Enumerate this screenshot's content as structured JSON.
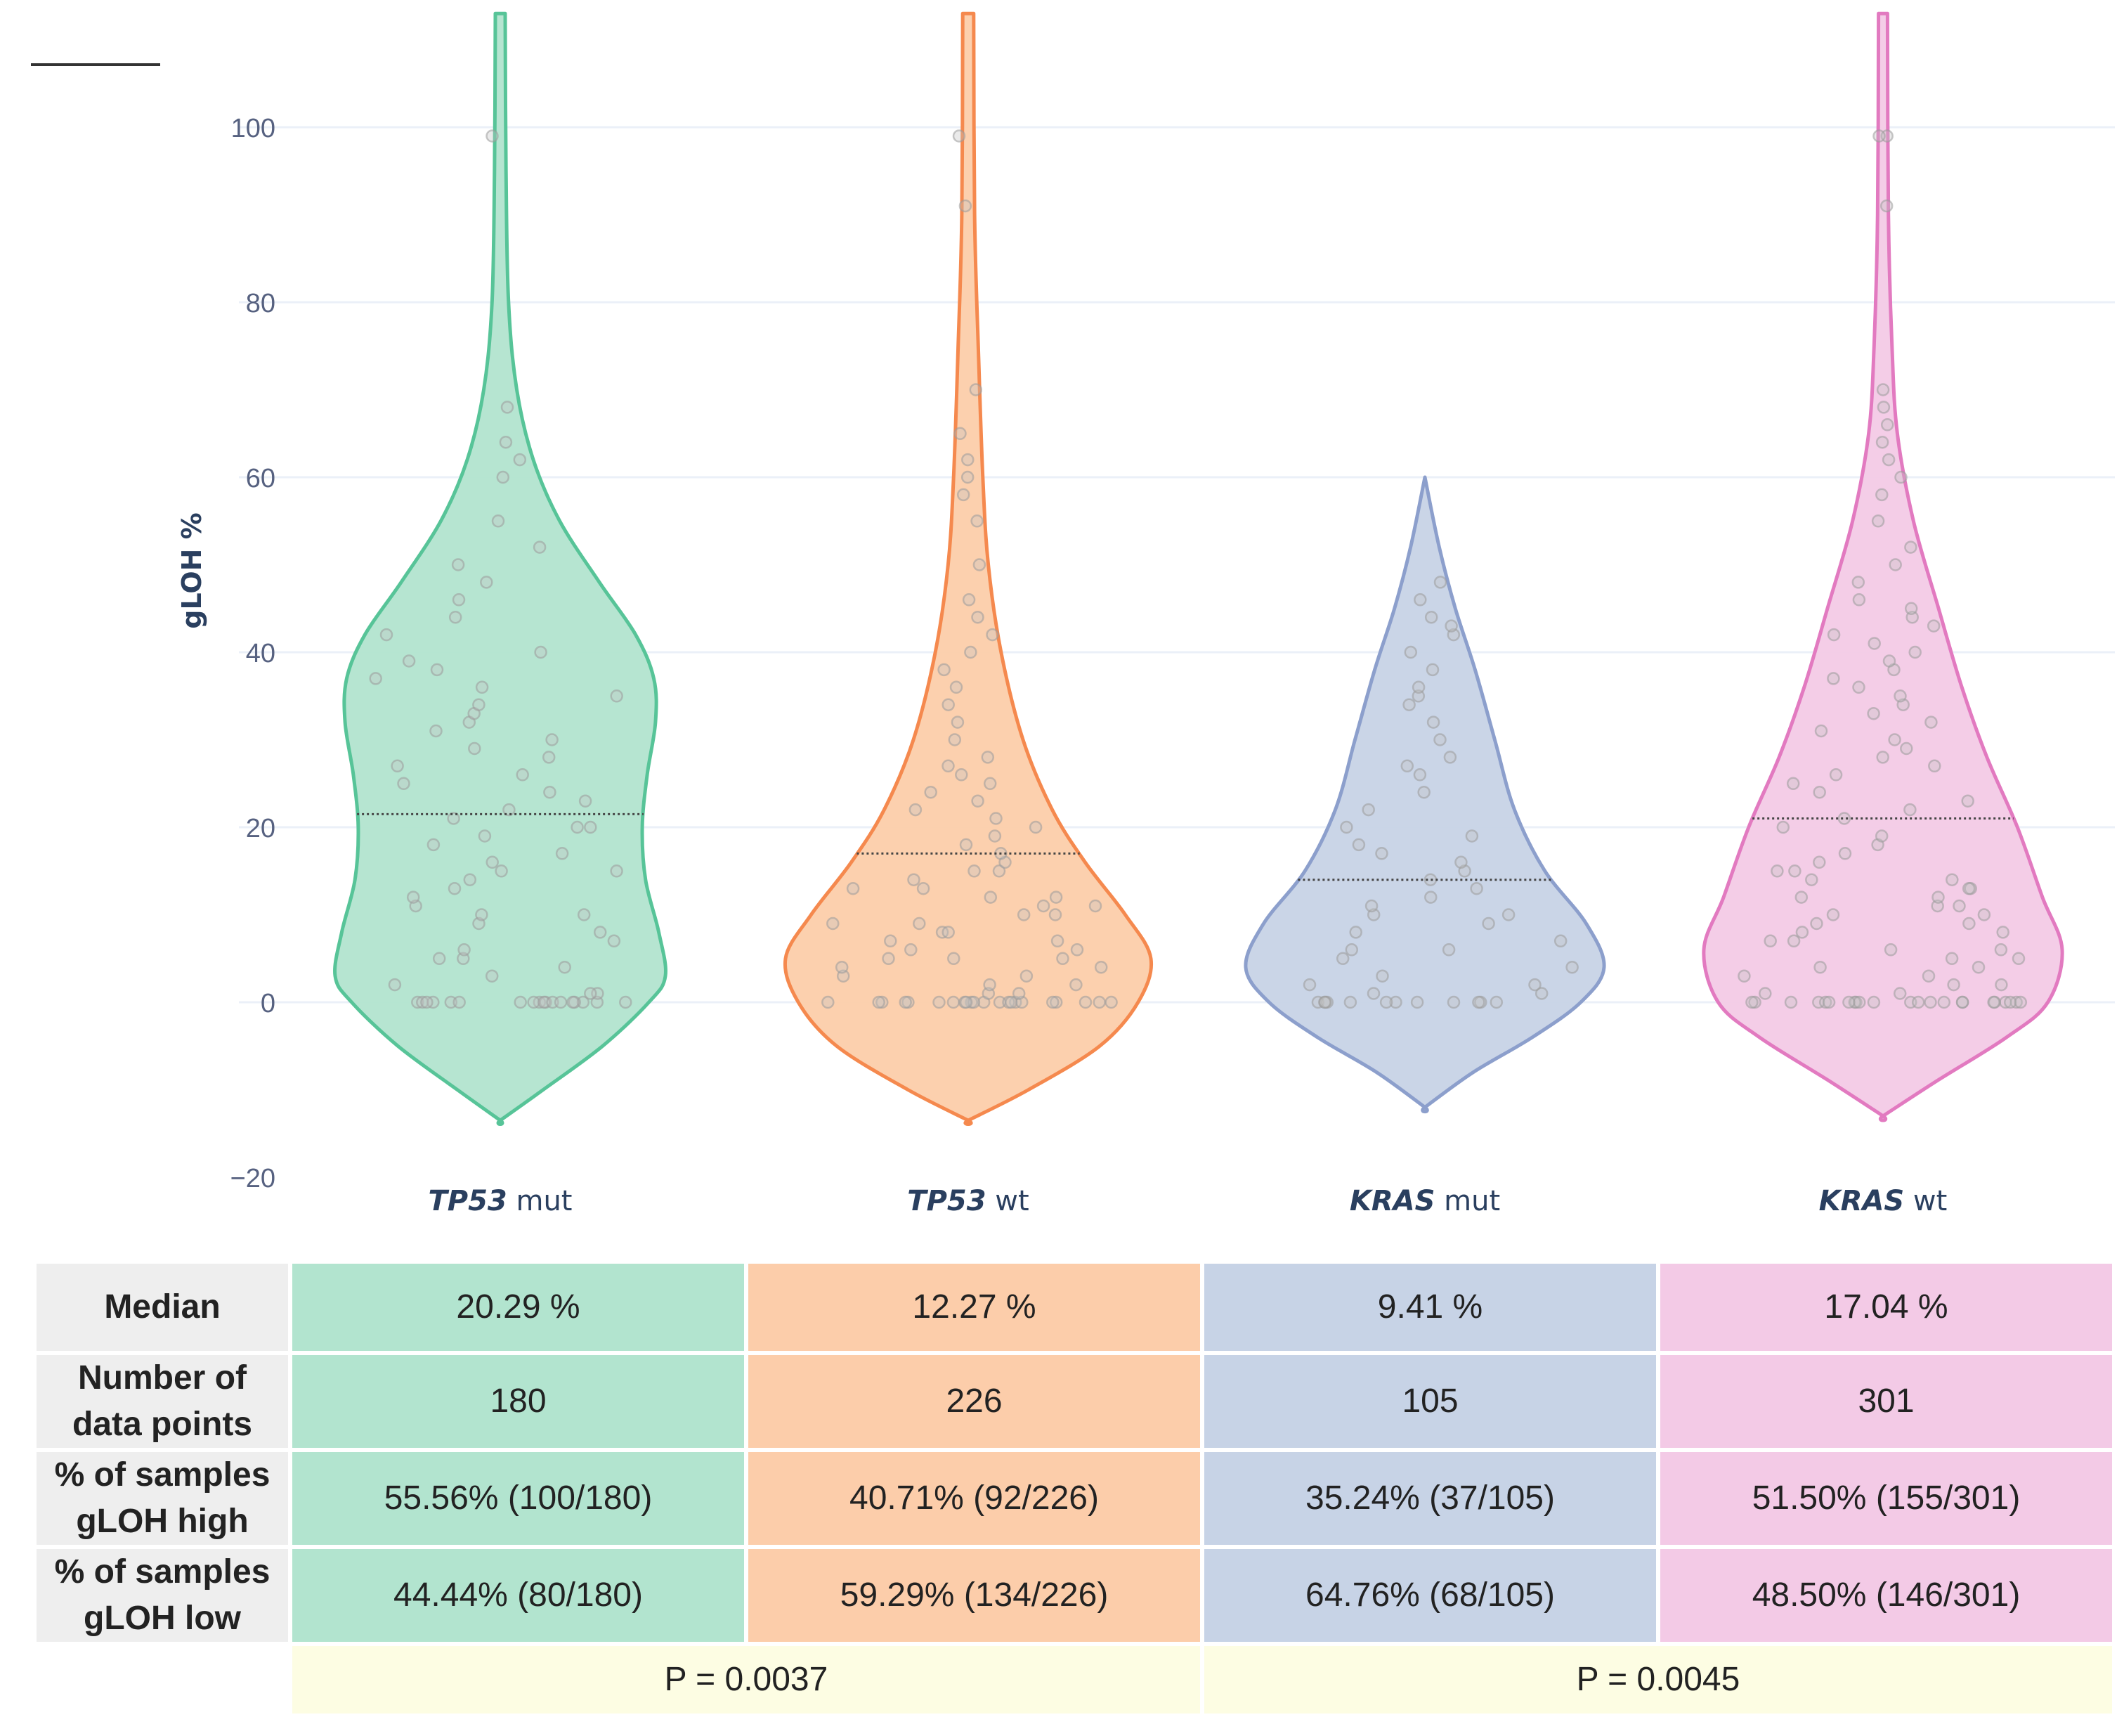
{
  "chart_data": {
    "type": "violin",
    "ylabel": "gLOH %",
    "ylim": [
      -20,
      110
    ],
    "yticks": [
      -20,
      0,
      20,
      40,
      60,
      80,
      100
    ],
    "grid": true,
    "categories": [
      {
        "gene": "TP53",
        "status": "mut",
        "color": "#57c498",
        "fill": "#b2e4cf"
      },
      {
        "gene": "TP53",
        "status": "wt",
        "color": "#f5894e",
        "fill": "#fccdaa"
      },
      {
        "gene": "KRAS",
        "status": "mut",
        "color": "#8c9fcc",
        "fill": "#c7d3e6"
      },
      {
        "gene": "KRAS",
        "status": "wt",
        "color": "#e27ac0",
        "fill": "#f3cae6"
      }
    ],
    "series": [
      {
        "name": "TP53 mut",
        "median_line": 21.5,
        "min": -13.5,
        "max": 113,
        "n": 180
      },
      {
        "name": "TP53 wt",
        "median_line": 17,
        "min": -13.5,
        "max": 113,
        "n": 226
      },
      {
        "name": "KRAS mut",
        "median_line": 14,
        "min": -12,
        "max": 60,
        "n": 105
      },
      {
        "name": "KRAS wt",
        "median_line": 21,
        "min": -13,
        "max": 113,
        "n": 301
      }
    ],
    "violin_profiles": [
      [
        [
          -13.5,
          0
        ],
        [
          -10,
          0.26
        ],
        [
          -5,
          0.62
        ],
        [
          0,
          0.9
        ],
        [
          3,
          1.0
        ],
        [
          8,
          0.96
        ],
        [
          14,
          0.88
        ],
        [
          20,
          0.86
        ],
        [
          26,
          0.89
        ],
        [
          32,
          0.94
        ],
        [
          37,
          0.93
        ],
        [
          42,
          0.82
        ],
        [
          48,
          0.6
        ],
        [
          55,
          0.36
        ],
        [
          62,
          0.2
        ],
        [
          70,
          0.1
        ],
        [
          80,
          0.05
        ],
        [
          95,
          0.035
        ],
        [
          113,
          0.03
        ]
      ],
      [
        [
          -13.5,
          0
        ],
        [
          -10,
          0.33
        ],
        [
          -5,
          0.72
        ],
        [
          0,
          0.93
        ],
        [
          5,
          1.0
        ],
        [
          10,
          0.86
        ],
        [
          16,
          0.64
        ],
        [
          22,
          0.46
        ],
        [
          30,
          0.3
        ],
        [
          40,
          0.18
        ],
        [
          50,
          0.11
        ],
        [
          60,
          0.08
        ],
        [
          75,
          0.055
        ],
        [
          90,
          0.035
        ],
        [
          113,
          0.03
        ]
      ],
      [
        [
          -12,
          0
        ],
        [
          -8,
          0.27
        ],
        [
          -4,
          0.6
        ],
        [
          0,
          0.87
        ],
        [
          4,
          1.0
        ],
        [
          9,
          0.9
        ],
        [
          15,
          0.67
        ],
        [
          22,
          0.5
        ],
        [
          30,
          0.39
        ],
        [
          38,
          0.28
        ],
        [
          45,
          0.17
        ],
        [
          52,
          0.08
        ],
        [
          60,
          0
        ]
      ],
      [
        [
          -13,
          0
        ],
        [
          -9,
          0.3
        ],
        [
          -4,
          0.69
        ],
        [
          0,
          0.92
        ],
        [
          6,
          1.0
        ],
        [
          12,
          0.89
        ],
        [
          20,
          0.75
        ],
        [
          28,
          0.58
        ],
        [
          36,
          0.44
        ],
        [
          45,
          0.31
        ],
        [
          55,
          0.17
        ],
        [
          65,
          0.08
        ],
        [
          75,
          0.05
        ],
        [
          90,
          0.03
        ],
        [
          113,
          0.025
        ]
      ]
    ],
    "points_sampled": [
      [
        0,
        0,
        0,
        0,
        0,
        0,
        0,
        0,
        0,
        0,
        0,
        0,
        0,
        0,
        0,
        0,
        0,
        0,
        1,
        1,
        2,
        3,
        4,
        5,
        5,
        6,
        7,
        8,
        9,
        10,
        10,
        11,
        12,
        13,
        14,
        15,
        15,
        16,
        17,
        18,
        19,
        20,
        20,
        21,
        22,
        23,
        24,
        25,
        26,
        27,
        28,
        29,
        30,
        31,
        32,
        33,
        34,
        35,
        36,
        37,
        38,
        39,
        40,
        42,
        44,
        46,
        48,
        50,
        52,
        55,
        60,
        62,
        64,
        68,
        99
      ],
      [
        0,
        0,
        0,
        0,
        0,
        0,
        0,
        0,
        0,
        0,
        0,
        0,
        0,
        0,
        0,
        0,
        0,
        0,
        0,
        0,
        0,
        0,
        1,
        1,
        2,
        2,
        3,
        3,
        4,
        4,
        5,
        5,
        5,
        6,
        6,
        7,
        7,
        8,
        8,
        9,
        9,
        10,
        10,
        11,
        11,
        12,
        12,
        13,
        13,
        14,
        15,
        15,
        16,
        17,
        18,
        19,
        20,
        21,
        22,
        23,
        24,
        25,
        26,
        27,
        28,
        30,
        32,
        34,
        36,
        38,
        40,
        42,
        44,
        46,
        50,
        55,
        58,
        60,
        62,
        65,
        70,
        91,
        99
      ],
      [
        0,
        0,
        0,
        0,
        0,
        0,
        0,
        0,
        0,
        0,
        0,
        0,
        1,
        1,
        2,
        2,
        3,
        4,
        5,
        6,
        6,
        7,
        8,
        9,
        10,
        10,
        11,
        12,
        13,
        14,
        15,
        16,
        17,
        18,
        19,
        20,
        22,
        24,
        26,
        27,
        28,
        30,
        32,
        34,
        35,
        36,
        38,
        40,
        42,
        43,
        44,
        46,
        48
      ],
      [
        0,
        0,
        0,
        0,
        0,
        0,
        0,
        0,
        0,
        0,
        0,
        0,
        0,
        0,
        0,
        0,
        0,
        0,
        0,
        0,
        0,
        0,
        0,
        1,
        1,
        2,
        2,
        3,
        3,
        4,
        4,
        5,
        5,
        6,
        6,
        7,
        7,
        8,
        8,
        9,
        9,
        10,
        10,
        11,
        11,
        12,
        12,
        13,
        13,
        14,
        14,
        15,
        15,
        16,
        17,
        18,
        19,
        20,
        21,
        22,
        23,
        24,
        25,
        26,
        27,
        28,
        29,
        30,
        31,
        32,
        33,
        34,
        35,
        36,
        37,
        38,
        39,
        40,
        41,
        42,
        43,
        44,
        45,
        46,
        48,
        50,
        52,
        55,
        58,
        60,
        62,
        64,
        66,
        68,
        70,
        91,
        99,
        99
      ]
    ],
    "point_color": "#c2c2c2"
  },
  "table": {
    "rows": [
      {
        "label": "Median",
        "values": [
          "20.29 %",
          "12.27 %",
          "9.41 %",
          "17.04 %"
        ]
      },
      {
        "label_line1": "Number of",
        "label_line2": "data points",
        "values": [
          "180",
          "226",
          "105",
          "301"
        ]
      },
      {
        "label_line1": "% of samples",
        "label_line2": "gLOH high",
        "values": [
          "55.56% (100/180)",
          "40.71% (92/226)",
          "35.24% (37/105)",
          "51.50% (155/301)"
        ]
      },
      {
        "label_line1": "% of samples",
        "label_line2": "gLOH low",
        "values": [
          "44.44% (80/180)",
          "59.29% (134/226)",
          "64.76% (68/105)",
          "48.50% (146/301)"
        ]
      }
    ],
    "pvalues": [
      "P = 0.0037",
      "P = 0.0045"
    ]
  }
}
